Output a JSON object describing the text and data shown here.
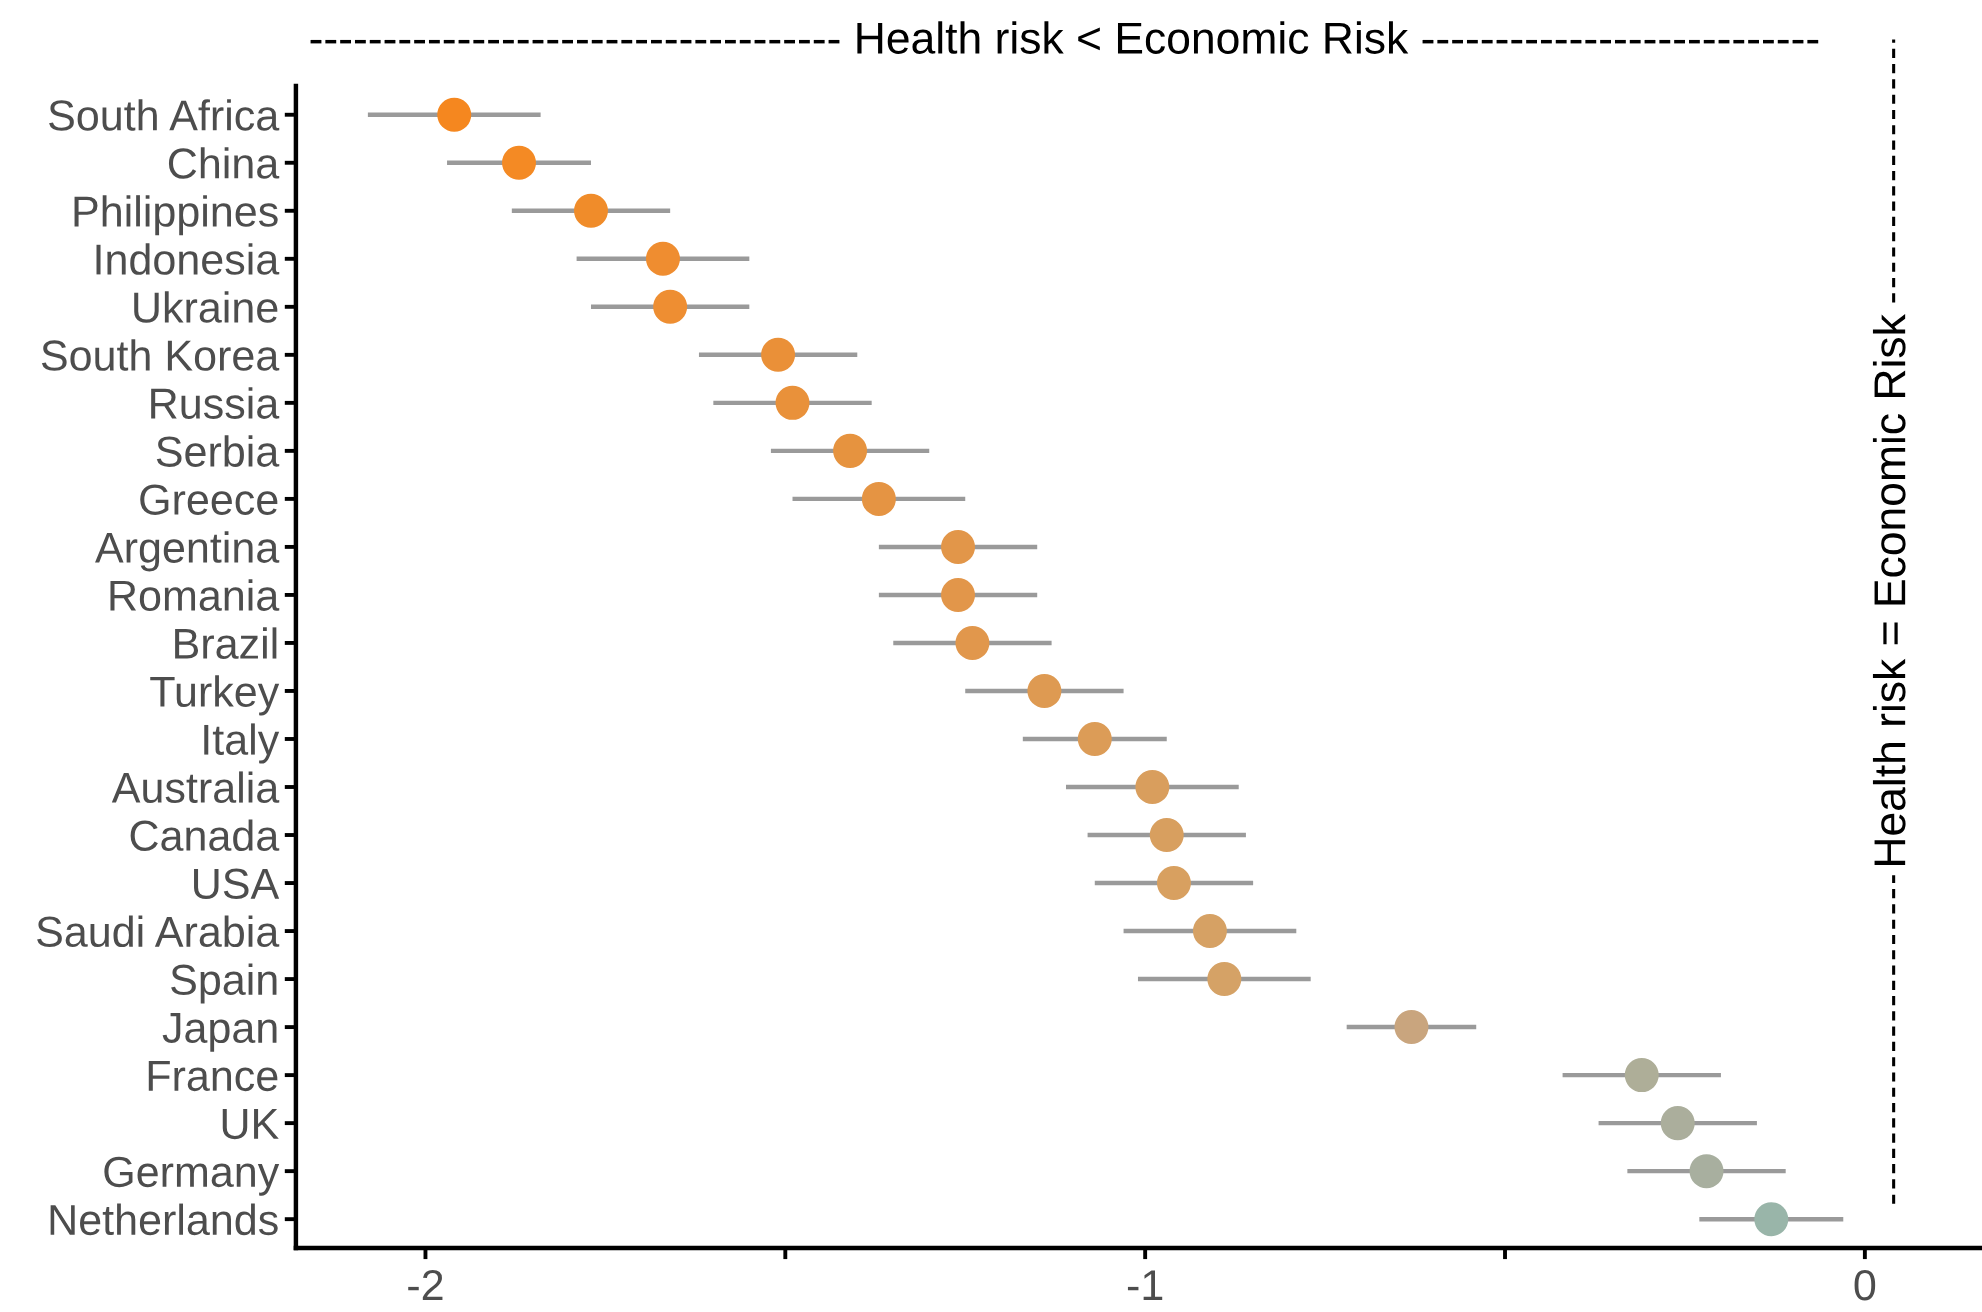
{
  "chart_data": {
    "type": "scatter",
    "orientation": "horizontal",
    "marker": "circle",
    "categories": [
      "South Africa",
      "China",
      "Philippines",
      "Indonesia",
      "Ukraine",
      "South Korea",
      "Russia",
      "Serbia",
      "Greece",
      "Argentina",
      "Romania",
      "Brazil",
      "Turkey",
      "Italy",
      "Australia",
      "Canada",
      "USA",
      "Saudi Arabia",
      "Spain",
      "Japan",
      "France",
      "UK",
      "Germany",
      "Netherlands"
    ],
    "values": [
      -1.96,
      -1.87,
      -1.77,
      -1.67,
      -1.66,
      -1.51,
      -1.49,
      -1.41,
      -1.37,
      -1.26,
      -1.26,
      -1.24,
      -1.14,
      -1.07,
      -0.99,
      -0.97,
      -0.96,
      -0.91,
      -0.89,
      -0.63,
      -0.31,
      -0.26,
      -0.22,
      -0.13
    ],
    "errors": [
      0.12,
      0.1,
      0.11,
      0.12,
      0.11,
      0.11,
      0.11,
      0.11,
      0.12,
      0.11,
      0.11,
      0.11,
      0.11,
      0.1,
      0.12,
      0.11,
      0.11,
      0.12,
      0.12,
      0.09,
      0.11,
      0.11,
      0.11,
      0.1
    ],
    "colors": [
      "#f5871f",
      "#f48a24",
      "#f08c2a",
      "#ef8d30",
      "#ee8e32",
      "#ea9038",
      "#e9913a",
      "#e6933f",
      "#e59443",
      "#e29649",
      "#e2964a",
      "#e1974c",
      "#de9a52",
      "#dc9c57",
      "#d99e5d",
      "#d89f5f",
      "#d8a060",
      "#d6a164",
      "#d5a266",
      "#c9a57e",
      "#aeae98",
      "#abae9c",
      "#a8af9f",
      "#99b5a9"
    ],
    "xlim": [
      -2.18,
      0.16
    ],
    "xticks": [
      -2,
      {
        "value": -1.5,
        "label": null
      },
      -1,
      {
        "value": -0.5,
        "label": null
      },
      0
    ],
    "grid": false,
    "ref_lines": [
      {
        "axis": "x",
        "value": 0.04,
        "label": "Health risk = Economic Risk",
        "line_style": "dashed",
        "color": "#000000"
      }
    ],
    "annotations": [
      "------------------------------------ Health risk < Economic Risk ---------------------------"
    ]
  }
}
